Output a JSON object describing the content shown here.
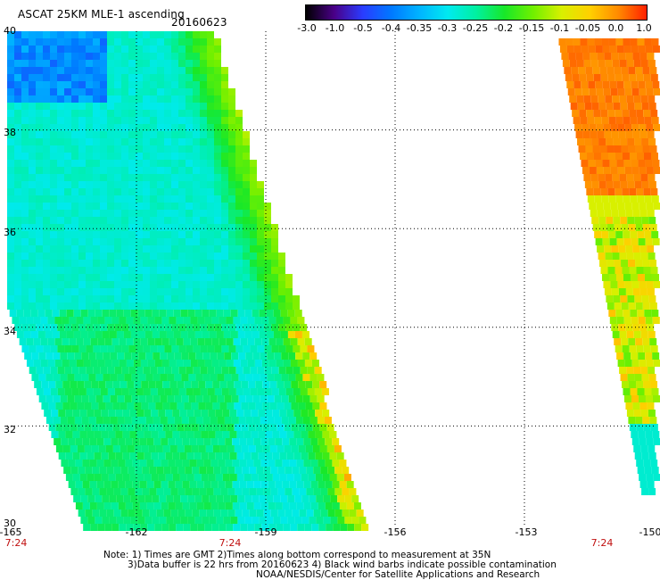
{
  "header": {
    "title": "ASCAT 25KM MLE-1 ascending",
    "date": "20160623"
  },
  "colorbar": {
    "labels": [
      "-3.0",
      "-1.0",
      "-0.5",
      "-0.4",
      "-0.35",
      "-0.3",
      "-0.25",
      "-0.2",
      "-0.15",
      "-0.1",
      "-0.05",
      "0.0",
      "1.0"
    ],
    "colors": [
      "#000000",
      "#4a0088",
      "#2a3cff",
      "#0078ff",
      "#00b4ff",
      "#00eaf0",
      "#00f0a0",
      "#18e828",
      "#70f000",
      "#d8f000",
      "#ffd000",
      "#ff8a00",
      "#ff2000"
    ]
  },
  "map": {
    "lat_labels": [
      "40",
      "38",
      "36",
      "34",
      "32",
      "30"
    ],
    "lon_labels": [
      "-165",
      "-162",
      "-159",
      "-156",
      "-153",
      "-150"
    ],
    "time_labels": [
      "7:24",
      "7:24",
      "7:24"
    ],
    "lat_range": [
      30,
      40
    ],
    "lon_range": [
      -165,
      -150
    ]
  },
  "notes": {
    "line1": "Note: 1) Times are GMT 2)Times along bottom correspond to measurement at 35N",
    "line2": "3)Data buffer is 22 hrs from 20160623 4) Black wind barbs indicate possible contamination",
    "line3": "NOAA/NESDIS/Center for Satellite Applications and Research"
  }
}
